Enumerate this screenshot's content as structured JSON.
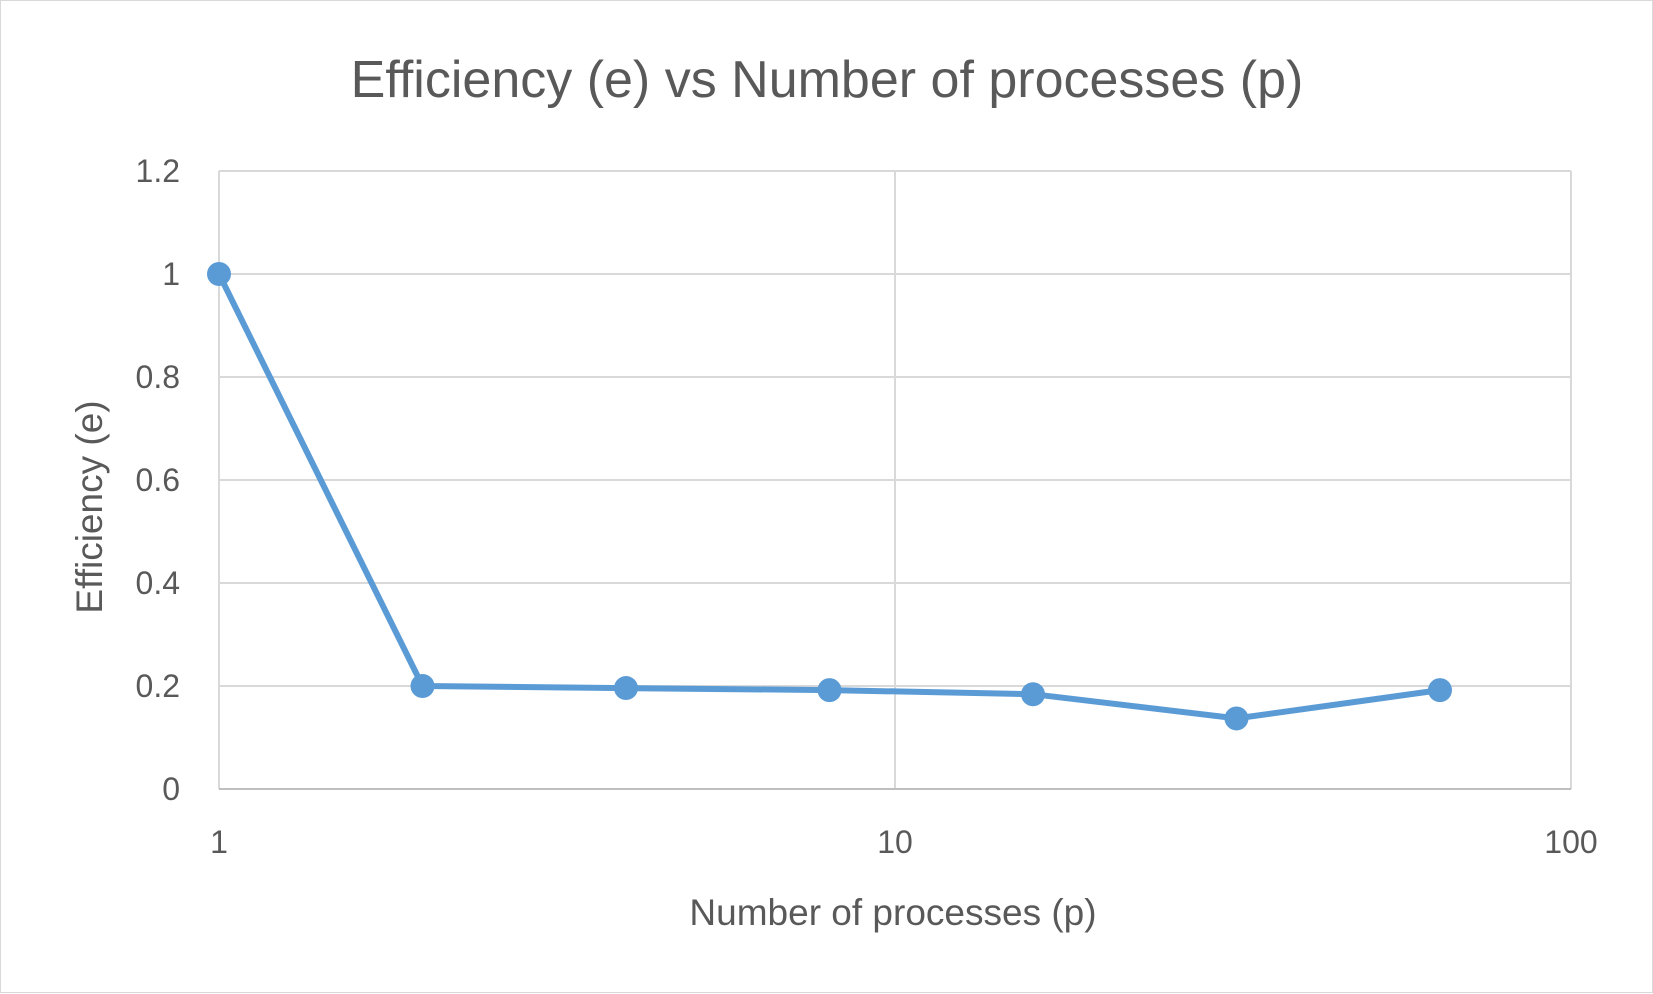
{
  "chart_data": {
    "type": "line",
    "title": "Efficiency (e) vs Number of processes (p)",
    "xlabel": "Number of processes (p)",
    "ylabel": "Efficiency (e)",
    "x_scale": "log10",
    "xlim": [
      1,
      100
    ],
    "ylim": [
      0,
      1.2
    ],
    "x_ticks": [
      1,
      10,
      100
    ],
    "y_ticks": [
      0,
      0.2,
      0.4,
      0.6,
      0.8,
      1,
      1.2
    ],
    "x_tick_labels": [
      "1",
      "10",
      "100"
    ],
    "y_tick_labels": [
      "0",
      "0.2",
      "0.4",
      "0.6",
      "0.8",
      "1",
      "1.2"
    ],
    "grid": true,
    "legend": "none",
    "series": [
      {
        "color": "#5b9bd5",
        "marker": "circle",
        "x": [
          1,
          2,
          4,
          8,
          16,
          32,
          64
        ],
        "y": [
          1.0,
          0.2,
          0.196,
          0.192,
          0.184,
          0.137,
          0.192
        ]
      }
    ]
  }
}
